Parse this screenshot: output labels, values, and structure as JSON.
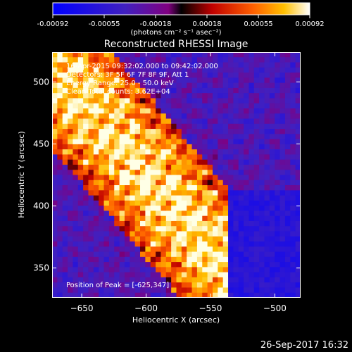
{
  "colorbar": {
    "tick_labels": [
      "-0.00092",
      "-0.00055",
      "-0.00018",
      "0.00018",
      "0.00055",
      "0.00092"
    ],
    "unit_label": "(photons cm⁻² s⁻¹ asec⁻²)",
    "range": [
      -0.00092,
      0.00092
    ]
  },
  "chart_data": {
    "type": "heatmap",
    "title": "Reconstructed RHESSI Image",
    "xlabel": "Heliocentric X (arcsec)",
    "ylabel": "Heliocentric Y (arcsec)",
    "xlim": [
      -673,
      -480
    ],
    "ylim": [
      326,
      524
    ],
    "xticks": [
      -650,
      -600,
      -550,
      -500
    ],
    "yticks": [
      350,
      400,
      450,
      500
    ],
    "xtick_labels": [
      "−650",
      "−600",
      "−550",
      "−500"
    ],
    "ytick_labels": [
      "350",
      "400",
      "450",
      "500"
    ],
    "annotations": [
      "16-Apr-2015 09:32:02.000 to 09:42:02.000",
      "Detectors: 3F 5F 6F 7F 8F 9F, Att 1",
      "Energy Range: 25.0 - 50.0 keV",
      "Clean     Total counts: 3.62E+04"
    ],
    "peak_label": "Position of Peak = [-625,347]",
    "peak_position": [
      -625,
      347
    ]
  },
  "footer": {
    "timestamp": "26-Sep-2017 16:32"
  }
}
